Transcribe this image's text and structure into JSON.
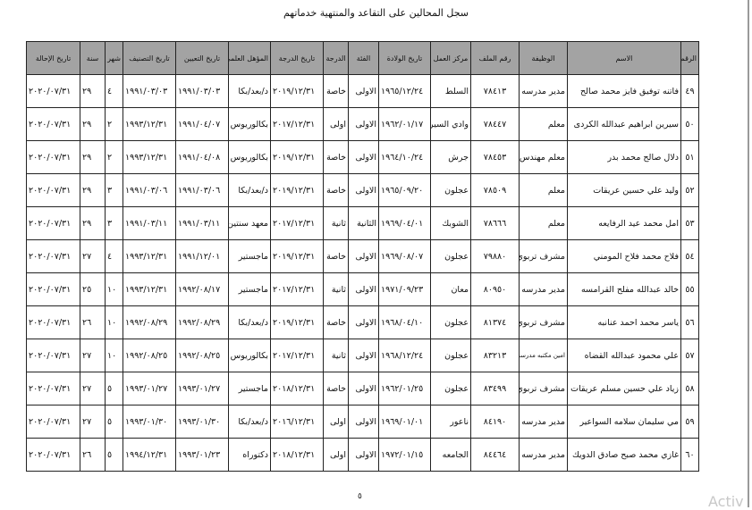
{
  "title": "سجل المحالين على التقاعد والمنتهية خدماتهم",
  "header_color": "#a3a3a3",
  "columns": [
    "الرقم",
    "الاسم",
    "الوظيفة",
    "رقم الملف",
    "مركز العمل",
    "تاريخ الولادة",
    "الفئة",
    "الدرجة",
    "تاريخ الدرجة",
    "المؤهل العلمي",
    "تاريخ التعيين",
    "تاريخ التصنيف",
    "شهر",
    "سنة",
    "تاريخ الإحالة"
  ],
  "rows": [
    [
      "٤٩",
      "فاتنه توفيق فايز محمد صالح",
      "مدير مدرسه",
      "٧٨٤١٣",
      "السلط",
      "١٩٦٥/١٢/٢٤",
      "الاولى",
      "خاصة",
      "٢٠١٩/١٢/٣١",
      "د/بعد/بكا",
      "١٩٩١/٠٣/٠٣",
      "١٩٩١/٠٣/٠٣",
      "٤",
      "٢٩",
      "٢٠٢٠/٠٧/٣١"
    ],
    [
      "٥٠",
      "سيرين ابراهيم عبدالله الكردى",
      "معلم",
      "٧٨٤٤٧",
      "وادي السير",
      "١٩٦٢/٠١/١٧",
      "الاولى",
      "اولى",
      "٢٠١٧/١٢/٣١",
      "بكالوريوس",
      "١٩٩١/٠٤/٠٧",
      "١٩٩٣/١٢/٣١",
      "٢",
      "٢٩",
      "٢٠٢٠/٠٧/٣١"
    ],
    [
      "٥١",
      "دلال صالح محمد بدر",
      "معلم مهندس",
      "٧٨٤٥٣",
      "جرش",
      "١٩٦٤/١٠/٢٤",
      "الاولى",
      "خاصة",
      "٢٠١٩/١٢/٣١",
      "بكالوريوس",
      "١٩٩١/٠٤/٠٨",
      "١٩٩٣/١٢/٣١",
      "٢",
      "٢٩",
      "٢٠٢٠/٠٧/٣١"
    ],
    [
      "٥٢",
      "وليد علي حسين عريقات",
      "معلم",
      "٧٨٥٠٩",
      "عجلون",
      "١٩٦٥/٠٩/٢٠",
      "الاولى",
      "خاصة",
      "٢٠١٩/١٢/٣١",
      "د/بعد/بكا",
      "١٩٩١/٠٣/٠٦",
      "١٩٩١/٠٣/٠٦",
      "٣",
      "٢٩",
      "٢٠٢٠/٠٧/٣١"
    ],
    [
      "٥٣",
      "امل محمد عيد الرفايعه",
      "معلم",
      "٧٨٦٦٦",
      "الشوبك",
      "١٩٦٩/٠٤/٠١",
      "الثانية",
      "ثانية",
      "٢٠١٧/١٢/٣١",
      "معهد سنتين",
      "١٩٩١/٠٣/١١",
      "١٩٩١/٠٣/١١",
      "٣",
      "٢٩",
      "٢٠٢٠/٠٧/٣١"
    ],
    [
      "٥٤",
      "فلاح محمد فلاح المومني",
      "مشرف تربوي",
      "٧٩٨٨٠",
      "عجلون",
      "١٩٦٩/٠٨/٠٧",
      "الاولى",
      "خاصة",
      "٢٠١٩/١٢/٣١",
      "ماجستير",
      "١٩٩١/١٢/٠١",
      "١٩٩٣/١٢/٣١",
      "٤",
      "٢٧",
      "٢٠٢٠/٠٧/٣١"
    ],
    [
      "٥٥",
      "خالد عبدالله مفلح القرامسه",
      "مدير مدرسه",
      "٨٠٩٥٠",
      "معان",
      "١٩٧١/٠٩/٢٣",
      "الاولى",
      "ثانية",
      "٢٠١٧/١٢/٣١",
      "ماجستير",
      "١٩٩٢/٠٨/١٧",
      "١٩٩٣/١٢/٣١",
      "١٠",
      "٢٥",
      "٢٠٢٠/٠٧/٣١"
    ],
    [
      "٥٦",
      "ياسر محمد احمد عنانبه",
      "مشرف تربوي",
      "٨١٣٧٤",
      "عجلون",
      "١٩٦٨/٠٤/١٠",
      "الاولى",
      "خاصة",
      "٢٠١٩/١٢/٣١",
      "د/بعد/بكا",
      "١٩٩٢/٠٨/٢٩",
      "١٩٩٢/٠٨/٢٩",
      "١٠",
      "٢٦",
      "٢٠٢٠/٠٧/٣١"
    ],
    [
      "٥٧",
      "علي محمود عبدالله القضاه",
      "امين مكتبه مدرسه",
      "٨٣٢١٣",
      "عجلون",
      "١٩٦٨/١٢/٢٤",
      "الاولى",
      "ثانية",
      "٢٠١٧/١٢/٣١",
      "بكالوريوس",
      "١٩٩٢/٠٨/٢٥",
      "١٩٩٢/٠٨/٢٥",
      "١٠",
      "٢٧",
      "٢٠٢٠/٠٧/٣١"
    ],
    [
      "٥٨",
      "زياد علي حسين مسلم عريقات",
      "مشرف تربوي",
      "٨٣٤٩٩",
      "عجلون",
      "١٩٦٢/٠١/٢٥",
      "الاولى",
      "خاصة",
      "٢٠١٨/١٢/٣١",
      "ماجستير",
      "١٩٩٣/٠١/٢٧",
      "١٩٩٣/٠١/٢٧",
      "٥",
      "٢٧",
      "٢٠٢٠/٠٧/٣١"
    ],
    [
      "٥٩",
      "مي سليمان سلامه السواعير",
      "مدير مدرسه",
      "٨٤١٩٠",
      "ناعور",
      "١٩٦٩/٠١/٠١",
      "الاولى",
      "اولى",
      "٢٠١٦/١٢/٣١",
      "د/بعد/بكا",
      "١٩٩٣/٠١/٣٠",
      "١٩٩٣/٠١/٣٠",
      "٥",
      "٢٧",
      "٢٠٢٠/٠٧/٣١"
    ],
    [
      "٦٠",
      "غازي محمد صبح صادق الدويك",
      "مدير مدرسه",
      "٨٤٤٦٤",
      "الجامعه",
      "١٩٧٢/٠١/١٥",
      "الاولى",
      "اولى",
      "٢٠١٨/١٢/٣١",
      "دكتوراه",
      "١٩٩٣/٠١/٢٣",
      "١٩٩٤/١٢/٣١",
      "٥",
      "٢٦",
      "٢٠٢٠/٠٧/٣١"
    ]
  ],
  "page_number": "٥",
  "watermark": "Activ"
}
